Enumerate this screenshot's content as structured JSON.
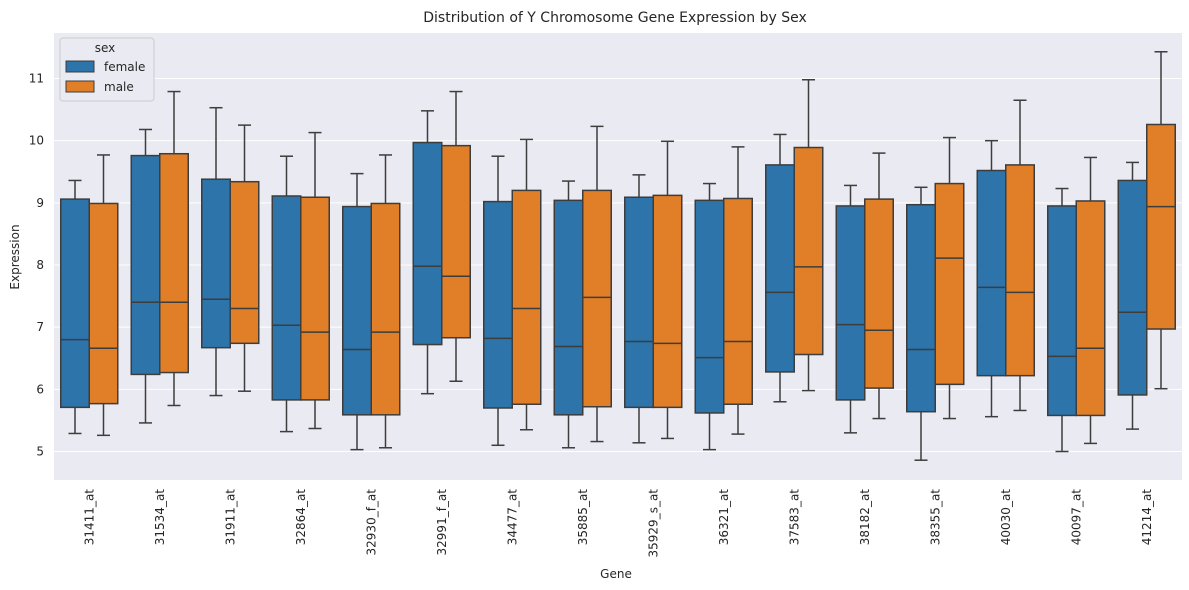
{
  "colors": {
    "female": "#2c74aa",
    "male": "#e07f27",
    "plot_bg": "#eaeaf2",
    "grid": "#ffffff",
    "line": "#3d3d3d"
  },
  "chart_data": {
    "type": "box",
    "title": "Distribution of Y Chromosome Gene Expression by Sex",
    "xlabel": "Gene",
    "ylabel": "Expression",
    "ylim": [
      4.5,
      11.8
    ],
    "yticks": [
      5,
      6,
      7,
      8,
      9,
      10,
      11
    ],
    "grid": true,
    "legend": {
      "title": "sex",
      "placement": "top-left",
      "entries": [
        "female",
        "male"
      ]
    },
    "categories": [
      "31411_at",
      "31534_at",
      "31911_at",
      "32864_at",
      "32930_f_at",
      "32991_f_at",
      "34477_at",
      "35885_at",
      "35929_s_at",
      "36321_at",
      "37583_at",
      "38182_at",
      "38355_at",
      "40030_at",
      "40097_at",
      "41214_at"
    ],
    "series": [
      {
        "name": "female",
        "boxes": [
          {
            "whislo": 5.29,
            "q1": 5.71,
            "med": 6.8,
            "q3": 9.06,
            "whishi": 9.36
          },
          {
            "whislo": 5.46,
            "q1": 6.24,
            "med": 7.4,
            "q3": 9.76,
            "whishi": 10.18
          },
          {
            "whislo": 5.9,
            "q1": 6.67,
            "med": 7.45,
            "q3": 9.38,
            "whishi": 10.53
          },
          {
            "whislo": 5.32,
            "q1": 5.83,
            "med": 7.03,
            "q3": 9.11,
            "whishi": 9.75
          },
          {
            "whislo": 5.03,
            "q1": 5.59,
            "med": 6.64,
            "q3": 8.94,
            "whishi": 9.47
          },
          {
            "whislo": 5.93,
            "q1": 6.72,
            "med": 7.98,
            "q3": 9.97,
            "whishi": 10.48
          },
          {
            "whislo": 5.1,
            "q1": 5.7,
            "med": 6.82,
            "q3": 9.02,
            "whishi": 9.75
          },
          {
            "whislo": 5.06,
            "q1": 5.59,
            "med": 6.69,
            "q3": 9.04,
            "whishi": 9.35
          },
          {
            "whislo": 5.14,
            "q1": 5.71,
            "med": 6.77,
            "q3": 9.09,
            "whishi": 9.45
          },
          {
            "whislo": 5.03,
            "q1": 5.62,
            "med": 6.51,
            "q3": 9.04,
            "whishi": 9.31
          },
          {
            "whislo": 5.8,
            "q1": 6.28,
            "med": 7.56,
            "q3": 9.61,
            "whishi": 10.1
          },
          {
            "whislo": 5.3,
            "q1": 5.83,
            "med": 7.04,
            "q3": 8.95,
            "whishi": 9.28
          },
          {
            "whislo": 4.86,
            "q1": 5.64,
            "med": 6.64,
            "q3": 8.97,
            "whishi": 9.25
          },
          {
            "whislo": 5.56,
            "q1": 6.22,
            "med": 7.64,
            "q3": 9.52,
            "whishi": 10.0
          },
          {
            "whislo": 5.0,
            "q1": 5.58,
            "med": 6.53,
            "q3": 8.95,
            "whishi": 9.23
          },
          {
            "whislo": 5.36,
            "q1": 5.91,
            "med": 7.24,
            "q3": 9.36,
            "whishi": 9.65
          }
        ]
      },
      {
        "name": "male",
        "boxes": [
          {
            "whislo": 5.26,
            "q1": 5.77,
            "med": 6.66,
            "q3": 8.99,
            "whishi": 9.77
          },
          {
            "whislo": 5.74,
            "q1": 6.27,
            "med": 7.4,
            "q3": 9.79,
            "whishi": 10.79
          },
          {
            "whislo": 5.97,
            "q1": 6.74,
            "med": 7.3,
            "q3": 9.34,
            "whishi": 10.25
          },
          {
            "whislo": 5.37,
            "q1": 5.83,
            "med": 6.92,
            "q3": 9.09,
            "whishi": 10.13
          },
          {
            "whislo": 5.06,
            "q1": 5.59,
            "med": 6.92,
            "q3": 8.99,
            "whishi": 9.77
          },
          {
            "whislo": 6.13,
            "q1": 6.83,
            "med": 7.82,
            "q3": 9.92,
            "whishi": 10.79
          },
          {
            "whislo": 5.35,
            "q1": 5.76,
            "med": 7.3,
            "q3": 9.2,
            "whishi": 10.02
          },
          {
            "whislo": 5.16,
            "q1": 5.72,
            "med": 7.48,
            "q3": 9.2,
            "whishi": 10.23
          },
          {
            "whislo": 5.21,
            "q1": 5.71,
            "med": 6.74,
            "q3": 9.12,
            "whishi": 9.99
          },
          {
            "whislo": 5.28,
            "q1": 5.76,
            "med": 6.77,
            "q3": 9.07,
            "whishi": 9.9
          },
          {
            "whislo": 5.98,
            "q1": 6.56,
            "med": 7.97,
            "q3": 9.89,
            "whishi": 10.98
          },
          {
            "whislo": 5.53,
            "q1": 6.02,
            "med": 6.95,
            "q3": 9.06,
            "whishi": 9.8
          },
          {
            "whislo": 5.53,
            "q1": 6.08,
            "med": 8.11,
            "q3": 9.31,
            "whishi": 10.05
          },
          {
            "whislo": 5.66,
            "q1": 6.22,
            "med": 7.56,
            "q3": 9.61,
            "whishi": 10.65
          },
          {
            "whislo": 5.13,
            "q1": 5.58,
            "med": 6.66,
            "q3": 9.03,
            "whishi": 9.73
          },
          {
            "whislo": 6.01,
            "q1": 6.97,
            "med": 8.94,
            "q3": 10.26,
            "whishi": 11.43
          }
        ]
      }
    ]
  }
}
